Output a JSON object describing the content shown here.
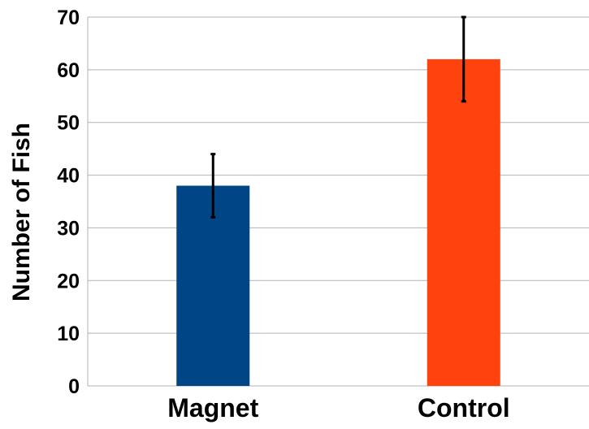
{
  "chart_data": {
    "type": "bar",
    "title": "",
    "xlabel": "",
    "ylabel": "Number of Fish",
    "categories": [
      "Magnet",
      "Control"
    ],
    "values": [
      38,
      62
    ],
    "error": [
      6,
      8
    ],
    "colors": [
      "#004586",
      "#ff420e"
    ],
    "ylim": [
      0,
      70
    ],
    "yticks": [
      "0",
      "10",
      "20",
      "30",
      "40",
      "50",
      "60",
      "70"
    ],
    "grid": true,
    "legend": "none"
  }
}
